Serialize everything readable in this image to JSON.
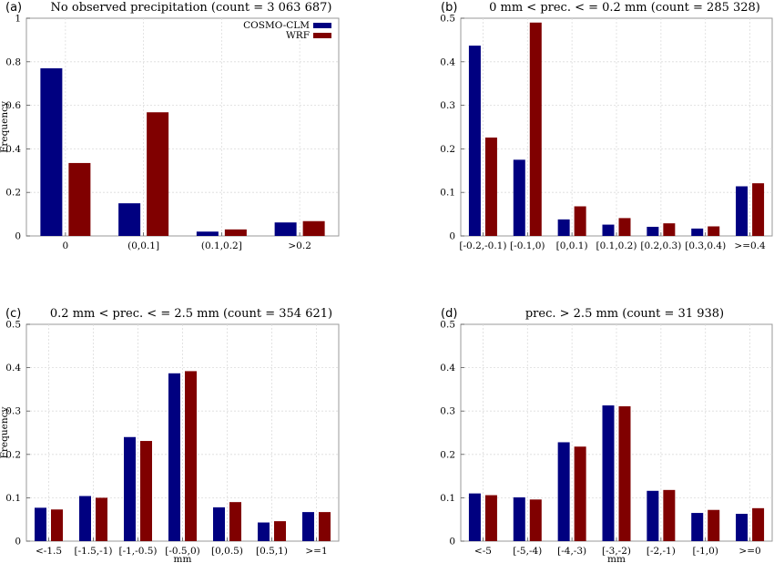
{
  "colors": {
    "series_a": "#000080",
    "series_b": "#800000",
    "grid": "#dcdcdc",
    "frame": "#9a9a9a"
  },
  "chart_data": [
    {
      "type": "bar",
      "panel": "(a)",
      "title": "No observed precipitation (count = 3 063 687)",
      "xlabel": "",
      "ylabel": "Frequency",
      "ylim": [
        0,
        1
      ],
      "yticks": [
        "0",
        "0.2",
        "0.4",
        "0.6",
        "0.8",
        "1"
      ],
      "grid": true,
      "legend": "top-right",
      "categories": [
        "0",
        "(0,0.1]",
        "(0.1,0.2]",
        ">0.2"
      ],
      "series": [
        {
          "name": "COSMO-CLM",
          "values": [
            0.77,
            0.15,
            0.02,
            0.062
          ]
        },
        {
          "name": "WRF",
          "values": [
            0.335,
            0.568,
            0.03,
            0.068
          ]
        }
      ]
    },
    {
      "type": "bar",
      "panel": "(b)",
      "title": "0 mm < prec. < = 0.2 mm (count = 285 328)",
      "xlabel": "",
      "ylabel": "",
      "ylim": [
        0,
        0.5
      ],
      "yticks": [
        "0",
        "0.1",
        "0.2",
        "0.3",
        "0.4",
        "0.5"
      ],
      "grid": true,
      "categories": [
        "[-0.2,-0.1)",
        "[-0.1,0)",
        "[0,0.1)",
        "[0.1,0.2)",
        "[0.2,0.3)",
        "[0.3,0.4)",
        ">=0.4"
      ],
      "series": [
        {
          "values": [
            0.437,
            0.175,
            0.038,
            0.026,
            0.021,
            0.017,
            0.114
          ]
        },
        {
          "values": [
            0.226,
            0.49,
            0.068,
            0.041,
            0.029,
            0.022,
            0.121
          ]
        }
      ]
    },
    {
      "type": "bar",
      "panel": "(c)",
      "title": "0.2 mm < prec. < = 2.5 mm (count = 354 621)",
      "xlabel": "mm",
      "ylabel": "Frequency",
      "ylim": [
        0,
        0.5
      ],
      "yticks": [
        "0",
        "0.1",
        "0.2",
        "0.3",
        "0.4",
        "0.5"
      ],
      "grid": true,
      "categories": [
        "<-1.5",
        "[-1.5,-1)",
        "[-1,-0.5)",
        "[-0.5,0)",
        "[0,0.5)",
        "[0.5,1)",
        ">=1"
      ],
      "series": [
        {
          "values": [
            0.077,
            0.104,
            0.24,
            0.387,
            0.078,
            0.043,
            0.067
          ]
        },
        {
          "values": [
            0.073,
            0.1,
            0.231,
            0.392,
            0.09,
            0.046,
            0.067
          ]
        }
      ]
    },
    {
      "type": "bar",
      "panel": "(d)",
      "title": "prec. > 2.5 mm (count = 31 938)",
      "xlabel": "mm",
      "ylabel": "",
      "ylim": [
        0,
        0.5
      ],
      "yticks": [
        "0",
        "0.1",
        "0.2",
        "0.3",
        "0.4",
        "0.5"
      ],
      "grid": true,
      "categories": [
        "<-5",
        "[-5,-4)",
        "[-4,-3)",
        "[-3,-2)",
        "[-2,-1)",
        "[-1,0)",
        ">=0"
      ],
      "series": [
        {
          "values": [
            0.11,
            0.101,
            0.228,
            0.313,
            0.116,
            0.065,
            0.063
          ]
        },
        {
          "values": [
            0.106,
            0.096,
            0.218,
            0.311,
            0.118,
            0.072,
            0.076
          ]
        }
      ]
    }
  ]
}
